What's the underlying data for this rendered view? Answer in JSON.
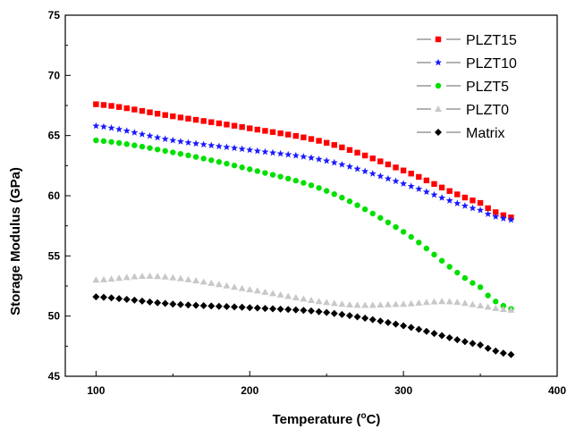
{
  "chart_data": {
    "type": "scatter",
    "xlabel": "Temperature (°C)",
    "xlabel_parts": [
      "Temperature (",
      "o",
      "C)"
    ],
    "ylabel": "Storage Modulus (GPa)",
    "xlim": [
      80,
      400
    ],
    "ylim": [
      45,
      75
    ],
    "x_ticks": [
      100,
      200,
      300,
      400
    ],
    "y_ticks": [
      45,
      50,
      55,
      60,
      65,
      70,
      75
    ],
    "legend_position": "top-right",
    "grid": false,
    "series": [
      {
        "name": "PLZT15",
        "color": "#ff0000",
        "marker": "square",
        "x": [
          100,
          150,
          200,
          250,
          300,
          350,
          370
        ],
        "values": [
          67.6,
          66.6,
          65.6,
          64.4,
          62.1,
          59.4,
          58.2
        ]
      },
      {
        "name": "PLZT10",
        "color": "#1a1aff",
        "marker": "star",
        "x": [
          100,
          150,
          200,
          250,
          300,
          350,
          370
        ],
        "values": [
          65.8,
          64.6,
          63.8,
          62.9,
          61.0,
          58.8,
          58.0
        ]
      },
      {
        "name": "PLZT5",
        "color": "#00e000",
        "marker": "circle",
        "x": [
          100,
          150,
          200,
          250,
          300,
          350,
          370
        ],
        "values": [
          64.6,
          63.6,
          62.2,
          60.4,
          57.0,
          52.4,
          50.6
        ]
      },
      {
        "name": "PLZT0",
        "color": "#c8c8c8",
        "marker": "triangle",
        "x": [
          100,
          140,
          200,
          260,
          300,
          330,
          370
        ],
        "values": [
          53.0,
          53.3,
          52.2,
          51.0,
          51.0,
          51.2,
          50.5
        ]
      },
      {
        "name": "Matrix",
        "color": "#000000",
        "marker": "diamond",
        "x": [
          100,
          150,
          200,
          250,
          300,
          350,
          370
        ],
        "values": [
          51.6,
          51.0,
          50.7,
          50.3,
          49.2,
          47.6,
          46.8
        ]
      }
    ]
  }
}
